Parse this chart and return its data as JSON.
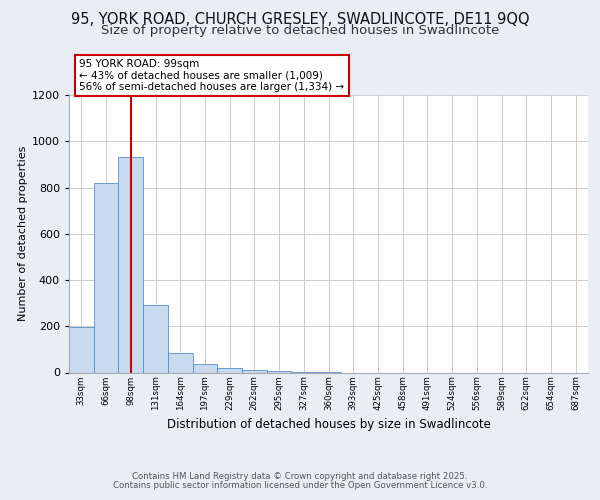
{
  "title1": "95, YORK ROAD, CHURCH GRESLEY, SWADLINCOTE, DE11 9QQ",
  "title2": "Size of property relative to detached houses in Swadlincote",
  "xlabel": "Distribution of detached houses by size in Swadlincote",
  "ylabel": "Number of detached properties",
  "categories": [
    "33sqm",
    "66sqm",
    "98sqm",
    "131sqm",
    "164sqm",
    "197sqm",
    "229sqm",
    "262sqm",
    "295sqm",
    "327sqm",
    "360sqm",
    "393sqm",
    "425sqm",
    "458sqm",
    "491sqm",
    "524sqm",
    "556sqm",
    "589sqm",
    "622sqm",
    "654sqm",
    "687sqm"
  ],
  "values": [
    195,
    820,
    930,
    290,
    85,
    35,
    20,
    10,
    8,
    3,
    1,
    0,
    0,
    0,
    0,
    0,
    0,
    0,
    0,
    0,
    0
  ],
  "bar_color": "#c8daf0",
  "bar_edge_color": "#5590c8",
  "red_line_x": 2,
  "annotation_title": "95 YORK ROAD: 99sqm",
  "annotation_line1": "← 43% of detached houses are smaller (1,009)",
  "annotation_line2": "56% of semi-detached houses are larger (1,334) →",
  "ylim": [
    0,
    1200
  ],
  "yticks": [
    0,
    200,
    400,
    600,
    800,
    1000,
    1200
  ],
  "footer1": "Contains HM Land Registry data © Crown copyright and database right 2025.",
  "footer2": "Contains public sector information licensed under the Open Government Licence v3.0.",
  "bg_color": "#e8eef4",
  "plot_bg_color": "#ffffff",
  "grid_color": "#cccccc",
  "red_line_color": "#cc0000",
  "annotation_box_color": "#cc0000",
  "title_fontsize": 10.5,
  "subtitle_fontsize": 9.5
}
